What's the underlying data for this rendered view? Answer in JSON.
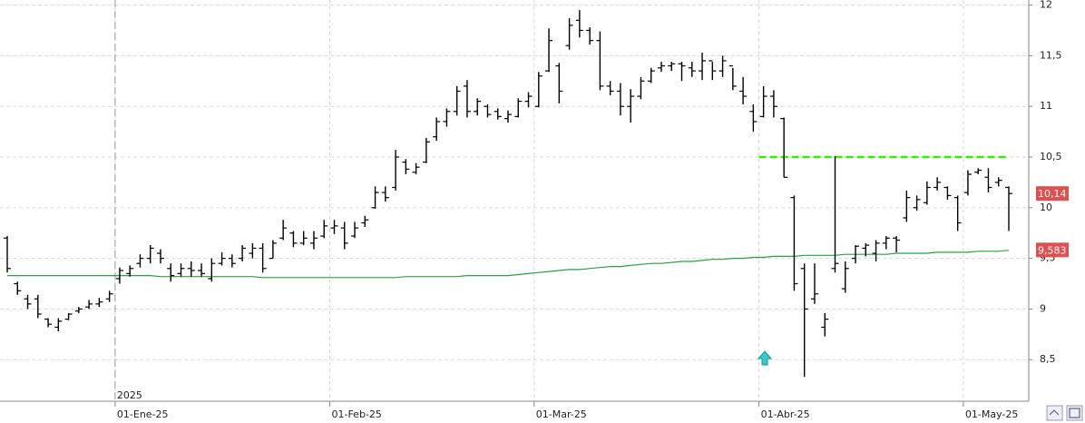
{
  "chart_data": {
    "type": "ohlc",
    "year_label": "2025",
    "categories": [
      null,
      null,
      null,
      null,
      null,
      null,
      null,
      null,
      null,
      null,
      null,
      "01-Ene-25",
      null,
      null,
      null,
      null,
      null,
      null,
      null,
      null,
      null,
      null,
      null,
      null,
      null,
      null,
      null,
      null,
      null,
      null,
      null,
      null,
      "01-Feb-25",
      null,
      null,
      null,
      null,
      null,
      null,
      null,
      null,
      null,
      null,
      null,
      null,
      null,
      null,
      null,
      null,
      null,
      null,
      null,
      "01-Mar-25",
      null,
      null,
      null,
      null,
      null,
      null,
      null,
      null,
      null,
      null,
      null,
      null,
      null,
      null,
      null,
      null,
      null,
      null,
      null,
      null,
      null,
      "01-Abr-25",
      null,
      null,
      null,
      null,
      null,
      null,
      null,
      null,
      null,
      null,
      null,
      null,
      null,
      null,
      null,
      null,
      null,
      null,
      null,
      "01-May-25",
      null,
      null,
      null,
      null
    ],
    "open": [
      9.7,
      9.25,
      9.1,
      9.1,
      8.9,
      8.82,
      8.9,
      8.98,
      9.02,
      9.05,
      9.1,
      9.3,
      9.35,
      9.45,
      9.5,
      9.55,
      9.4,
      9.35,
      9.4,
      9.38,
      9.3,
      9.45,
      9.5,
      9.5,
      9.55,
      9.6,
      9.5,
      9.7,
      9.75,
      9.65,
      9.65,
      9.72,
      9.8,
      9.8,
      9.72,
      9.85,
      10.0,
      10.15,
      10.2,
      10.45,
      10.35,
      10.45,
      10.7,
      10.85,
      10.95,
      11.2,
      10.95,
      11.0,
      10.95,
      10.88,
      10.9,
      11.05,
      11.0,
      11.35,
      11.4,
      11.6,
      11.85,
      11.75,
      11.65,
      11.2,
      11.15,
      11.0,
      11.1,
      11.25,
      11.38,
      11.4,
      11.42,
      11.38,
      11.35,
      11.45,
      11.35,
      11.4,
      11.15,
      10.95,
      10.9,
      11.1,
      10.88,
      10.1,
      9.4,
      9.1,
      8.82,
      9.4,
      9.2,
      9.5,
      9.6,
      9.55,
      9.65,
      9.7,
      9.9,
      10.0,
      10.05,
      10.2,
      10.2,
      10.1,
      10.15,
      10.35,
      10.3,
      10.25,
      10.2
    ],
    "high": [
      9.72,
      9.27,
      9.14,
      9.14,
      8.91,
      8.91,
      8.96,
      9.02,
      9.09,
      9.11,
      9.18,
      9.41,
      9.43,
      9.54,
      9.63,
      9.59,
      9.45,
      9.45,
      9.47,
      9.45,
      9.5,
      9.56,
      9.54,
      9.63,
      9.65,
      9.65,
      9.68,
      9.88,
      9.77,
      9.77,
      9.77,
      9.88,
      9.88,
      9.86,
      9.86,
      9.92,
      10.21,
      10.21,
      10.57,
      10.48,
      10.44,
      10.69,
      10.89,
      10.98,
      11.2,
      11.26,
      11.08,
      11.02,
      10.98,
      10.96,
      11.08,
      11.14,
      11.34,
      11.77,
      11.43,
      11.87,
      11.95,
      11.78,
      11.74,
      11.25,
      11.23,
      11.17,
      11.29,
      11.38,
      11.44,
      11.44,
      11.44,
      11.44,
      11.53,
      11.44,
      11.5,
      11.38,
      11.29,
      11.02,
      11.2,
      11.16,
      10.89,
      10.12,
      9.45,
      9.45,
      8.96,
      10.51,
      9.47,
      9.63,
      9.65,
      9.68,
      9.72,
      9.72,
      10.17,
      10.12,
      10.26,
      10.3,
      10.21,
      10.12,
      10.37,
      10.39,
      10.39,
      10.3,
      10.21
    ],
    "low": [
      9.36,
      9.14,
      9.0,
      8.91,
      8.82,
      8.78,
      8.89,
      8.96,
      9.0,
      9.02,
      9.07,
      9.25,
      9.32,
      9.41,
      9.45,
      9.45,
      9.27,
      9.32,
      9.32,
      9.32,
      9.27,
      9.43,
      9.41,
      9.47,
      9.5,
      9.36,
      9.5,
      9.68,
      9.61,
      9.63,
      9.59,
      9.7,
      9.74,
      9.59,
      9.7,
      9.81,
      9.99,
      10.06,
      10.17,
      10.33,
      10.33,
      10.44,
      10.66,
      10.8,
      10.91,
      10.89,
      10.91,
      10.89,
      10.87,
      10.84,
      10.89,
      10.99,
      10.99,
      11.34,
      11.03,
      11.56,
      11.68,
      11.61,
      11.16,
      11.11,
      10.91,
      10.84,
      11.07,
      11.23,
      11.34,
      11.35,
      11.25,
      11.29,
      11.26,
      11.26,
      11.29,
      11.16,
      11.02,
      10.75,
      10.89,
      10.89,
      10.3,
      9.18,
      8.33,
      9.05,
      8.73,
      9.36,
      9.16,
      9.45,
      9.52,
      9.47,
      9.59,
      9.56,
      9.86,
      9.97,
      10.03,
      10.17,
      10.08,
      9.77,
      10.12,
      10.33,
      10.15,
      10.21,
      9.77
    ],
    "close": [
      9.4,
      9.18,
      9.05,
      8.95,
      8.85,
      8.88,
      8.95,
      9.0,
      9.05,
      9.07,
      9.15,
      9.38,
      9.4,
      9.5,
      9.6,
      9.5,
      9.33,
      9.4,
      9.38,
      9.35,
      9.45,
      9.5,
      9.45,
      9.6,
      9.6,
      9.4,
      9.65,
      9.8,
      9.65,
      9.7,
      9.7,
      9.82,
      9.82,
      9.65,
      9.8,
      9.88,
      10.15,
      10.1,
      10.5,
      10.38,
      10.4,
      10.65,
      10.85,
      10.95,
      11.15,
      10.95,
      11.05,
      10.92,
      10.9,
      10.92,
      11.05,
      11.1,
      11.3,
      11.65,
      11.15,
      11.8,
      11.75,
      11.65,
      11.2,
      11.15,
      11.0,
      11.1,
      11.25,
      11.35,
      11.4,
      11.42,
      11.4,
      11.35,
      11.45,
      11.35,
      11.45,
      11.2,
      11.1,
      10.85,
      11.1,
      11.0,
      10.3,
      9.25,
      9.0,
      9.15,
      8.9,
      9.45,
      9.4,
      9.62,
      9.63,
      9.65,
      9.7,
      9.68,
      10.1,
      10.08,
      10.2,
      10.25,
      10.12,
      9.85,
      10.33,
      10.37,
      10.2,
      10.27,
      10.14
    ],
    "bar_color": "#000000",
    "moving_average": {
      "color": "#2e9e46",
      "values": [
        9.33,
        9.33,
        9.33,
        9.33,
        9.33,
        9.33,
        9.33,
        9.33,
        9.33,
        9.33,
        9.33,
        9.33,
        9.33,
        9.33,
        9.33,
        9.32,
        9.32,
        9.32,
        9.32,
        9.32,
        9.32,
        9.32,
        9.32,
        9.32,
        9.32,
        9.31,
        9.31,
        9.31,
        9.31,
        9.31,
        9.31,
        9.31,
        9.31,
        9.31,
        9.31,
        9.31,
        9.31,
        9.31,
        9.31,
        9.32,
        9.32,
        9.32,
        9.32,
        9.32,
        9.32,
        9.33,
        9.33,
        9.33,
        9.33,
        9.33,
        9.34,
        9.35,
        9.36,
        9.37,
        9.38,
        9.39,
        9.39,
        9.4,
        9.41,
        9.42,
        9.42,
        9.43,
        9.44,
        9.45,
        9.45,
        9.46,
        9.47,
        9.47,
        9.48,
        9.49,
        9.49,
        9.5,
        9.5,
        9.51,
        9.51,
        9.52,
        9.52,
        9.52,
        9.53,
        9.53,
        9.53,
        9.53,
        9.54,
        9.54,
        9.54,
        9.54,
        9.54,
        9.55,
        9.55,
        9.55,
        9.55,
        9.56,
        9.56,
        9.56,
        9.56,
        9.57,
        9.57,
        9.57,
        9.58
      ]
    },
    "resistance": {
      "value": 10.5,
      "color": "#33ee00"
    },
    "last_price": {
      "value": 10.14,
      "label": "10,14",
      "color": "#e05050"
    },
    "ma_last": {
      "value": 9.583,
      "label": "9,583",
      "color": "#e05050"
    },
    "ylim": [
      8.09,
      12.05
    ],
    "yticks": [
      {
        "value": 8.5,
        "label": "8,5"
      },
      9,
      {
        "value": 9.5,
        "label": "9,5"
      },
      10,
      {
        "value": 10.5,
        "label": "10,5"
      },
      11,
      {
        "value": 11.5,
        "label": "11,5"
      },
      12
    ],
    "grid": true
  }
}
